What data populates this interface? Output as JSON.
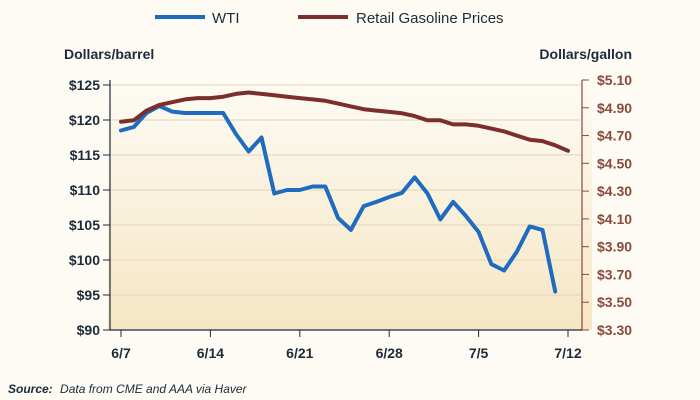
{
  "chart_data": {
    "type": "line",
    "legend": [
      "WTI",
      "Retail Gasoline Prices"
    ],
    "left_axis_title": "Dollars/barrel",
    "right_axis_title": "Dollars/gallon",
    "x_tick_labels": [
      "6/7",
      "6/14",
      "6/21",
      "6/28",
      "7/5",
      "7/12"
    ],
    "left_ticks": [
      "$90",
      "$95",
      "$100",
      "$105",
      "$110",
      "$115",
      "$120",
      "$125"
    ],
    "right_ticks": [
      "$3.30",
      "$3.50",
      "$3.70",
      "$3.90",
      "$4.10",
      "$4.30",
      "$4.50",
      "$4.70",
      "$4.90",
      "$5.10"
    ],
    "ylim_left": [
      90,
      125
    ],
    "ylim_right": [
      3.3,
      5.1
    ],
    "xlim_days": [
      0,
      35
    ],
    "source_label": "Source:",
    "source_text": "Data from CME and AAA via Haver",
    "colors": {
      "wti": "#1f6bbf",
      "gas": "#7b2f2a",
      "right_axis": "#8a4a3c",
      "text": "#1d2b3a"
    },
    "series": [
      {
        "name": "WTI",
        "axis": "left",
        "x": [
          0,
          1,
          2,
          3,
          4,
          5,
          6,
          7,
          8,
          9,
          10,
          11,
          12,
          13,
          14,
          15,
          16,
          17,
          18,
          19,
          20,
          21,
          22,
          23,
          24,
          25,
          26,
          27,
          28,
          29,
          30,
          31,
          32,
          33,
          34
        ],
        "y": [
          118.5,
          119,
          121,
          122,
          121.2,
          121,
          121,
          121,
          121,
          118,
          115.5,
          117.5,
          109.5,
          110,
          110,
          110.5,
          110.5,
          106,
          104.3,
          107.7,
          108.3,
          109,
          109.6,
          111.8,
          109.5,
          105.8,
          108.3,
          106.3,
          104,
          99.4,
          98.5,
          101.2,
          104.8,
          104.3,
          95.5
        ]
      },
      {
        "name": "Retail Gasoline Prices",
        "axis": "right",
        "x": [
          0,
          1,
          2,
          3,
          4,
          5,
          6,
          7,
          8,
          9,
          10,
          11,
          12,
          13,
          14,
          15,
          16,
          17,
          18,
          19,
          20,
          21,
          22,
          23,
          24,
          25,
          26,
          27,
          28,
          29,
          30,
          31,
          32,
          33,
          34,
          35
        ],
        "y": [
          4.8,
          4.81,
          4.88,
          4.92,
          4.94,
          4.96,
          4.97,
          4.97,
          4.98,
          5.0,
          5.01,
          5.0,
          4.99,
          4.98,
          4.97,
          4.96,
          4.95,
          4.93,
          4.91,
          4.89,
          4.88,
          4.87,
          4.86,
          4.84,
          4.81,
          4.81,
          4.78,
          4.78,
          4.77,
          4.75,
          4.73,
          4.7,
          4.67,
          4.66,
          4.63,
          4.59
        ]
      }
    ]
  }
}
